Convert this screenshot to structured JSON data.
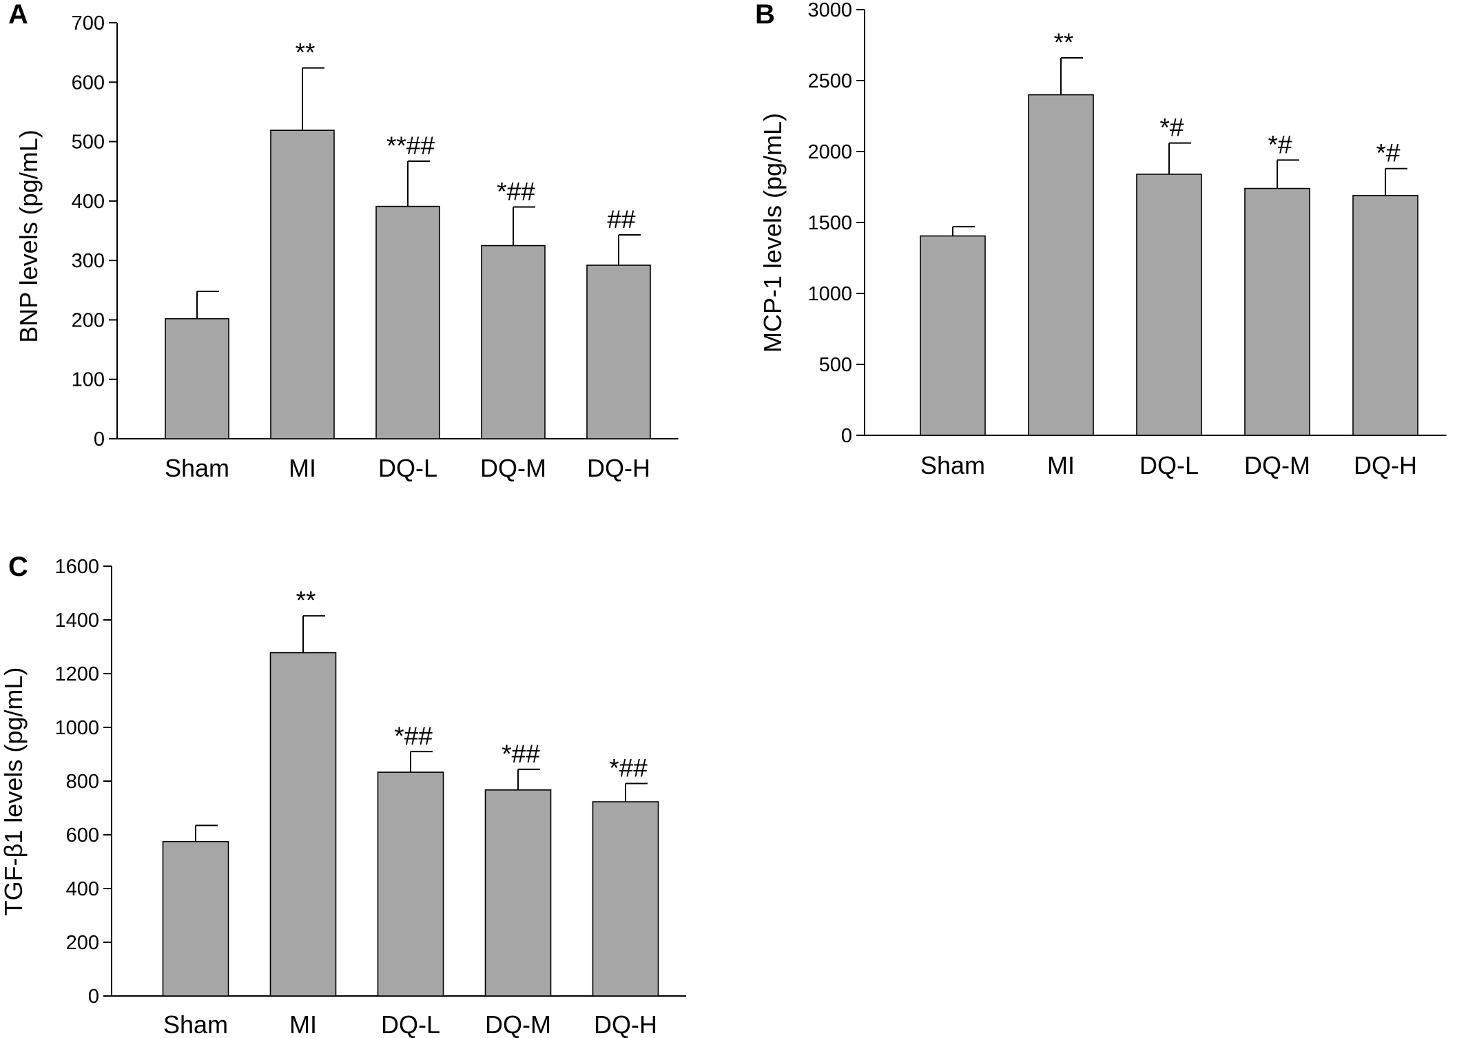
{
  "figure": {
    "panels": [
      "A",
      "B",
      "C"
    ]
  },
  "chart_data": [
    {
      "panel": "A",
      "type": "bar",
      "title": "",
      "ylabel": "BNP levels (pg/mL)",
      "xlabel": "",
      "categories": [
        "Sham",
        "MI",
        "DQ-L",
        "DQ-M",
        "DQ-H"
      ],
      "values": [
        202,
        519,
        391,
        325,
        292
      ],
      "errors": [
        46,
        105,
        76,
        65,
        51
      ],
      "annotations": [
        "",
        "**",
        "**##",
        "*##",
        "##"
      ],
      "ylim": [
        0,
        700
      ],
      "yticks": [
        0,
        100,
        200,
        300,
        400,
        500,
        600,
        700
      ],
      "colors": {
        "bar": "#a6a6a6",
        "edge": "#000000"
      }
    },
    {
      "panel": "B",
      "type": "bar",
      "title": "",
      "ylabel": "MCP-1 levels (pg/mL)",
      "xlabel": "",
      "categories": [
        "Sham",
        "MI",
        "DQ-L",
        "DQ-M",
        "DQ-H"
      ],
      "values": [
        1405,
        2400,
        1840,
        1740,
        1690
      ],
      "errors": [
        65,
        260,
        220,
        200,
        190
      ],
      "annotations": [
        "",
        "**",
        "*#",
        "*#",
        "*#"
      ],
      "ylim": [
        0,
        3000
      ],
      "yticks": [
        0,
        500,
        1000,
        1500,
        2000,
        2500,
        3000
      ],
      "colors": {
        "bar": "#a6a6a6",
        "edge": "#000000"
      }
    },
    {
      "panel": "C",
      "type": "bar",
      "title": "",
      "ylabel": "TGF-β1 levels (pg/mL)",
      "xlabel": "",
      "categories": [
        "Sham",
        "MI",
        "DQ-L",
        "DQ-M",
        "DQ-H"
      ],
      "values": [
        575,
        1278,
        833,
        767,
        723
      ],
      "errors": [
        60,
        137,
        77,
        77,
        68
      ],
      "annotations": [
        "",
        "**",
        "*##",
        "*##",
        "*##"
      ],
      "ylim": [
        0,
        1600
      ],
      "yticks": [
        0,
        200,
        400,
        600,
        800,
        1000,
        1200,
        1400,
        1600
      ],
      "colors": {
        "bar": "#a6a6a6",
        "edge": "#000000"
      }
    }
  ]
}
